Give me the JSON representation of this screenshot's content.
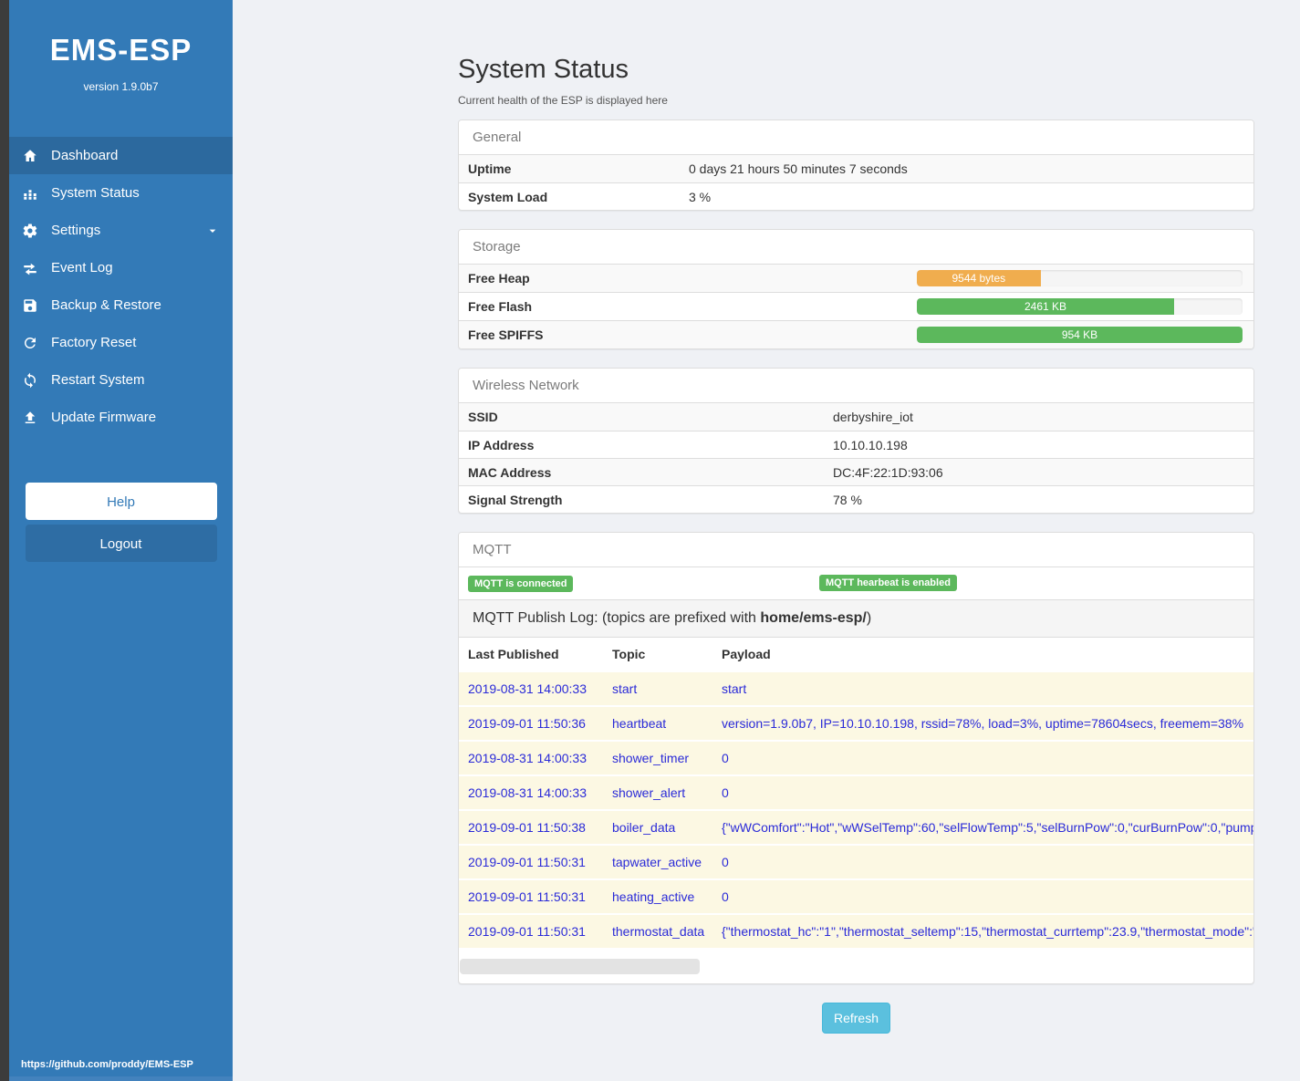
{
  "sidebar": {
    "brand": "EMS-ESP",
    "version": "version 1.9.0b7",
    "nav": [
      {
        "label": "Dashboard",
        "icon": "home-icon",
        "active": true
      },
      {
        "label": "System Status",
        "icon": "system-status-icon"
      },
      {
        "label": "Settings",
        "icon": "gear-icon",
        "chevron": true
      },
      {
        "label": "Event Log",
        "icon": "exchange-icon"
      },
      {
        "label": "Backup & Restore",
        "icon": "save-icon"
      },
      {
        "label": "Factory Reset",
        "icon": "refresh-icon"
      },
      {
        "label": "Restart System",
        "icon": "sync-icon"
      },
      {
        "label": "Update Firmware",
        "icon": "upload-icon"
      }
    ],
    "help_label": "Help",
    "logout_label": "Logout",
    "footer_link": "https://github.com/proddy/EMS-ESP"
  },
  "page": {
    "title": "System Status",
    "subtitle": "Current health of the ESP is displayed here",
    "refresh_label": "Refresh"
  },
  "panels": {
    "general": {
      "title": "General",
      "rows": [
        {
          "label": "Uptime",
          "value": "0 days 21 hours 50 minutes 7 seconds"
        },
        {
          "label": "System Load",
          "value": "3 %"
        }
      ]
    },
    "storage": {
      "title": "Storage",
      "rows": [
        {
          "label": "Free Heap",
          "bar_label": "9544 bytes",
          "percent": 38,
          "color": "#f0ad4e"
        },
        {
          "label": "Free Flash",
          "bar_label": "2461 KB",
          "percent": 79,
          "color": "#5cb85c"
        },
        {
          "label": "Free SPIFFS",
          "bar_label": "954 KB",
          "percent": 100,
          "color": "#5cb85c"
        }
      ]
    },
    "wireless": {
      "title": "Wireless Network",
      "rows": [
        {
          "label": "SSID",
          "value": "derbyshire_iot"
        },
        {
          "label": "IP Address",
          "value": "10.10.10.198"
        },
        {
          "label": "MAC Address",
          "value": "DC:4F:22:1D:93:06"
        },
        {
          "label": "Signal Strength",
          "value": "78 %"
        }
      ]
    },
    "mqtt": {
      "title": "MQTT",
      "badges": [
        "MQTT is connected",
        "MQTT hearbeat is enabled"
      ],
      "log_intro": "MQTT Publish Log: (topics are prefixed with ",
      "log_topic_prefix": "home/ems-esp/",
      "log_intro_end": ")",
      "columns": [
        "Last Published",
        "Topic",
        "Payload"
      ],
      "rows": [
        [
          "2019-08-31 14:00:33",
          "start",
          "start"
        ],
        [
          "2019-09-01 11:50:36",
          "heartbeat",
          "version=1.9.0b7, IP=10.10.10.198, rssid=78%, load=3%, uptime=78604secs, freemem=38%"
        ],
        [
          "2019-08-31 14:00:33",
          "shower_timer",
          "0"
        ],
        [
          "2019-08-31 14:00:33",
          "shower_alert",
          "0"
        ],
        [
          "2019-09-01 11:50:38",
          "boiler_data",
          "{\"wWComfort\":\"Hot\",\"wWSelTemp\":60,\"selFlowTemp\":5,\"selBurnPow\":0,\"curBurnPow\":0,\"pump"
        ],
        [
          "2019-09-01 11:50:31",
          "tapwater_active",
          "0"
        ],
        [
          "2019-09-01 11:50:31",
          "heating_active",
          "0"
        ],
        [
          "2019-09-01 11:50:31",
          "thermostat_data",
          "{\"thermostat_hc\":\"1\",\"thermostat_seltemp\":15,\"thermostat_currtemp\":23.9,\"thermostat_mode\":\""
        ]
      ]
    }
  },
  "colors": {
    "sidebar": "#337ab7",
    "sidebar_active": "#2c699e",
    "badge_green": "#5cb85c",
    "bar_orange": "#f0ad4e",
    "bar_green": "#5cb85c",
    "refresh_cyan": "#5bc0de",
    "log_row_bg": "#fcf8e3",
    "log_text_blue": "#2a2ad8"
  }
}
